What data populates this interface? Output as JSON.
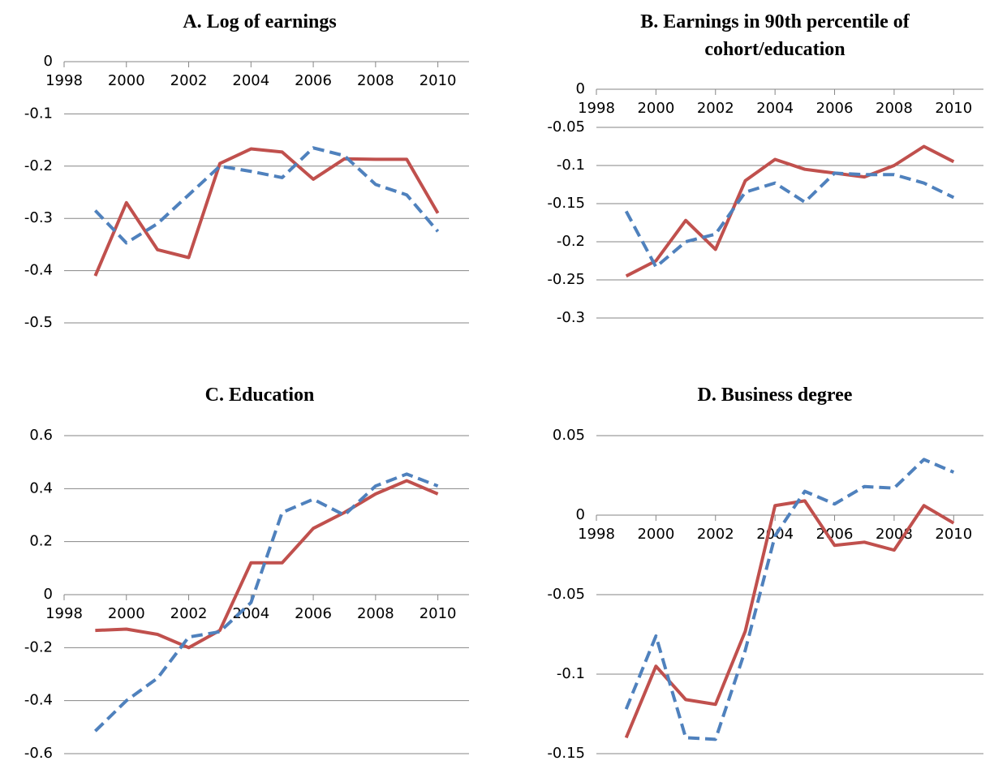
{
  "chart_data": [
    {
      "type": "line",
      "title": "A. Log of earnings",
      "x": [
        1999,
        2000,
        2001,
        2002,
        2003,
        2004,
        2005,
        2006,
        2007,
        2008,
        2009,
        2010
      ],
      "xlim": [
        1998,
        2011
      ],
      "xticks": [
        1998,
        2000,
        2002,
        2004,
        2006,
        2008,
        2010
      ],
      "ylim": [
        -0.5,
        0
      ],
      "yticks": [
        0,
        -0.1,
        -0.2,
        -0.3,
        -0.4,
        -0.5
      ],
      "grid": true,
      "series": [
        {
          "color": "#c0504d",
          "dashed": false,
          "values": [
            -0.41,
            -0.27,
            -0.36,
            -0.375,
            -0.195,
            -0.167,
            -0.173,
            -0.225,
            -0.186,
            -0.187,
            -0.187,
            -0.29
          ]
        },
        {
          "color": "#4f81bd",
          "dashed": true,
          "values": [
            -0.285,
            -0.347,
            -0.31,
            -0.255,
            -0.2,
            -0.21,
            -0.222,
            -0.165,
            -0.18,
            -0.235,
            -0.255,
            -0.325
          ]
        }
      ]
    },
    {
      "type": "line",
      "title": "B. Earnings in 90th percentile of cohort/education",
      "x": [
        1999,
        2000,
        2001,
        2002,
        2003,
        2004,
        2005,
        2006,
        2007,
        2008,
        2009,
        2010
      ],
      "xlim": [
        1998,
        2011
      ],
      "xticks": [
        1998,
        2000,
        2002,
        2004,
        2006,
        2008,
        2010
      ],
      "ylim": [
        -0.3,
        0
      ],
      "yticks": [
        0,
        -0.05,
        -0.1,
        -0.15,
        -0.2,
        -0.25,
        -0.3
      ],
      "grid": true,
      "series": [
        {
          "color": "#c0504d",
          "dashed": false,
          "values": [
            -0.245,
            -0.225,
            -0.172,
            -0.21,
            -0.12,
            -0.092,
            -0.105,
            -0.11,
            -0.115,
            -0.1,
            -0.075,
            -0.095
          ]
        },
        {
          "color": "#4f81bd",
          "dashed": true,
          "values": [
            -0.16,
            -0.233,
            -0.2,
            -0.19,
            -0.135,
            -0.123,
            -0.148,
            -0.11,
            -0.112,
            -0.112,
            -0.123,
            -0.142
          ]
        }
      ]
    },
    {
      "type": "line",
      "title": "C. Education",
      "x": [
        1999,
        2000,
        2001,
        2002,
        2003,
        2004,
        2005,
        2006,
        2007,
        2008,
        2009,
        2010
      ],
      "xlim": [
        1998,
        2011
      ],
      "xticks": [
        1998,
        2000,
        2002,
        2004,
        2006,
        2008,
        2010
      ],
      "ylim": [
        -0.6,
        0.6
      ],
      "yticks": [
        0.6,
        0.4,
        0.2,
        0,
        -0.2,
        -0.4,
        -0.6
      ],
      "grid": true,
      "series": [
        {
          "color": "#c0504d",
          "dashed": false,
          "values": [
            -0.135,
            -0.13,
            -0.15,
            -0.2,
            -0.135,
            0.12,
            0.12,
            0.25,
            0.31,
            0.38,
            0.43,
            0.38
          ]
        },
        {
          "color": "#4f81bd",
          "dashed": true,
          "values": [
            -0.515,
            -0.4,
            -0.315,
            -0.16,
            -0.14,
            -0.03,
            0.31,
            0.36,
            0.3,
            0.41,
            0.455,
            0.41
          ]
        }
      ]
    },
    {
      "type": "line",
      "title": "D. Business degree",
      "x": [
        1999,
        2000,
        2001,
        2002,
        2003,
        2004,
        2005,
        2006,
        2007,
        2008,
        2009,
        2010
      ],
      "xlim": [
        1998,
        2011
      ],
      "xticks": [
        1998,
        2000,
        2002,
        2004,
        2006,
        2008,
        2010
      ],
      "ylim": [
        -0.15,
        0.05
      ],
      "yticks": [
        0.05,
        0,
        -0.05,
        -0.1,
        -0.15
      ],
      "grid": true,
      "series": [
        {
          "color": "#c0504d",
          "dashed": false,
          "values": [
            -0.14,
            -0.095,
            -0.116,
            -0.119,
            -0.073,
            0.006,
            0.009,
            -0.019,
            -0.017,
            -0.022,
            0.006,
            -0.005
          ]
        },
        {
          "color": "#4f81bd",
          "dashed": true,
          "values": [
            -0.122,
            -0.076,
            -0.14,
            -0.141,
            -0.085,
            -0.013,
            0.015,
            0.007,
            0.018,
            0.017,
            0.035,
            0.027
          ]
        }
      ]
    }
  ]
}
